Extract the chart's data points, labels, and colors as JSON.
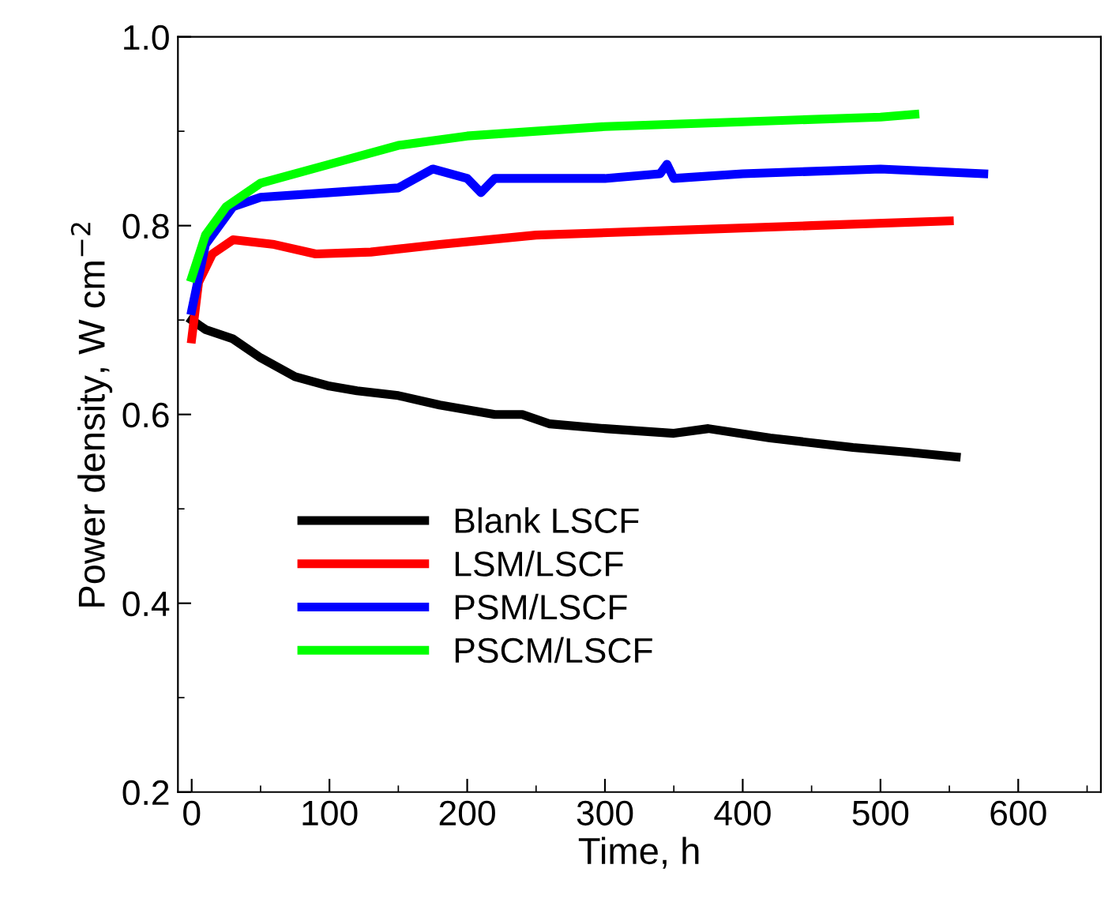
{
  "chart_data": {
    "type": "line",
    "xlabel": "Time, h",
    "ylabel": "Power density, W cm$^{−2}$",
    "xlim": [
      -10,
      660
    ],
    "ylim": [
      0.2,
      1.0
    ],
    "xticks": [
      0,
      100,
      200,
      300,
      400,
      500,
      600
    ],
    "yticks": [
      0.2,
      0.4,
      0.6,
      0.8,
      {
        "value": 1,
        "label": "1.0"
      }
    ],
    "grid": false,
    "legend": "bottom left",
    "marker": "none",
    "line_style": "solid",
    "series": [
      {
        "name": "Blank LSCF",
        "color": "#000000",
        "x": [
          0,
          10,
          30,
          50,
          75,
          100,
          120,
          150,
          180,
          220,
          240,
          260,
          300,
          350,
          375,
          420,
          480,
          520,
          555
        ],
        "values": [
          0.7,
          0.69,
          0.68,
          0.66,
          0.64,
          0.63,
          0.625,
          0.62,
          0.61,
          0.6,
          0.6,
          0.59,
          0.585,
          0.58,
          0.585,
          0.575,
          0.565,
          0.56,
          0.555
        ]
      },
      {
        "name": "LSM/LSCF",
        "color": "#ff0000",
        "x": [
          0,
          5,
          15,
          30,
          60,
          90,
          130,
          180,
          250,
          350,
          450,
          550
        ],
        "values": [
          0.68,
          0.74,
          0.77,
          0.785,
          0.78,
          0.77,
          0.772,
          0.78,
          0.79,
          0.795,
          0.8,
          0.805
        ]
      },
      {
        "name": "PSM/LSCF",
        "color": "#0000ff",
        "x": [
          0,
          10,
          30,
          50,
          100,
          150,
          175,
          200,
          210,
          220,
          300,
          340,
          345,
          350,
          400,
          500,
          575
        ],
        "values": [
          0.71,
          0.78,
          0.82,
          0.83,
          0.835,
          0.84,
          0.86,
          0.85,
          0.835,
          0.85,
          0.85,
          0.855,
          0.865,
          0.85,
          0.855,
          0.86,
          0.855
        ]
      },
      {
        "name": "PSCM/LSCF",
        "color": "#00ff00",
        "x": [
          0,
          10,
          25,
          50,
          100,
          150,
          200,
          250,
          300,
          400,
          500,
          525
        ],
        "values": [
          0.745,
          0.79,
          0.82,
          0.845,
          0.865,
          0.885,
          0.895,
          0.9,
          0.905,
          0.91,
          0.915,
          0.918
        ]
      }
    ]
  }
}
